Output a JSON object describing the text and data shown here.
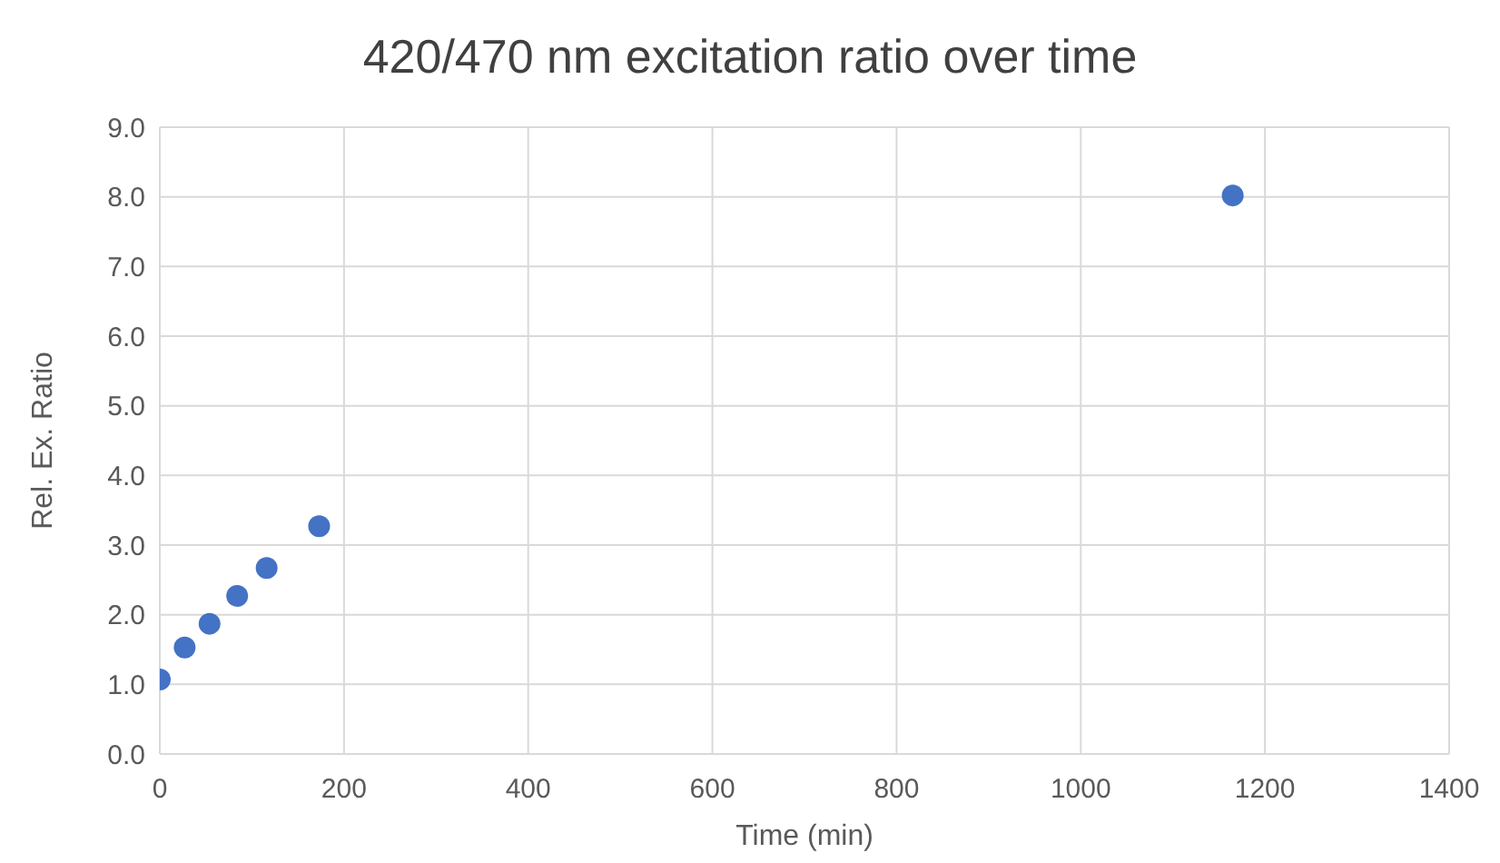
{
  "chart_data": {
    "type": "scatter",
    "title": "420/470 nm excitation ratio over time",
    "xlabel": "Time (min)",
    "ylabel": "Rel. Ex. Ratio",
    "x": [
      0,
      27,
      54,
      84,
      116,
      173,
      1165
    ],
    "values": [
      1.07,
      1.53,
      1.87,
      2.27,
      2.67,
      3.27,
      8.02
    ],
    "color": "#4472c4",
    "marker": "circle",
    "xlim": [
      0,
      1400
    ],
    "xticks": [
      0,
      200,
      400,
      600,
      800,
      1000,
      1200,
      1400
    ],
    "ylim": [
      0,
      9
    ],
    "yticks": [
      {
        "value": 0,
        "label": "0.0"
      },
      {
        "value": 1,
        "label": "1.0"
      },
      {
        "value": 2,
        "label": "2.0"
      },
      {
        "value": 3,
        "label": "3.0"
      },
      {
        "value": 4,
        "label": "4.0"
      },
      {
        "value": 5,
        "label": "5.0"
      },
      {
        "value": 6,
        "label": "6.0"
      },
      {
        "value": 7,
        "label": "7.0"
      },
      {
        "value": 8,
        "label": "8.0"
      },
      {
        "value": 9,
        "label": "9.0"
      }
    ],
    "grid": true
  }
}
